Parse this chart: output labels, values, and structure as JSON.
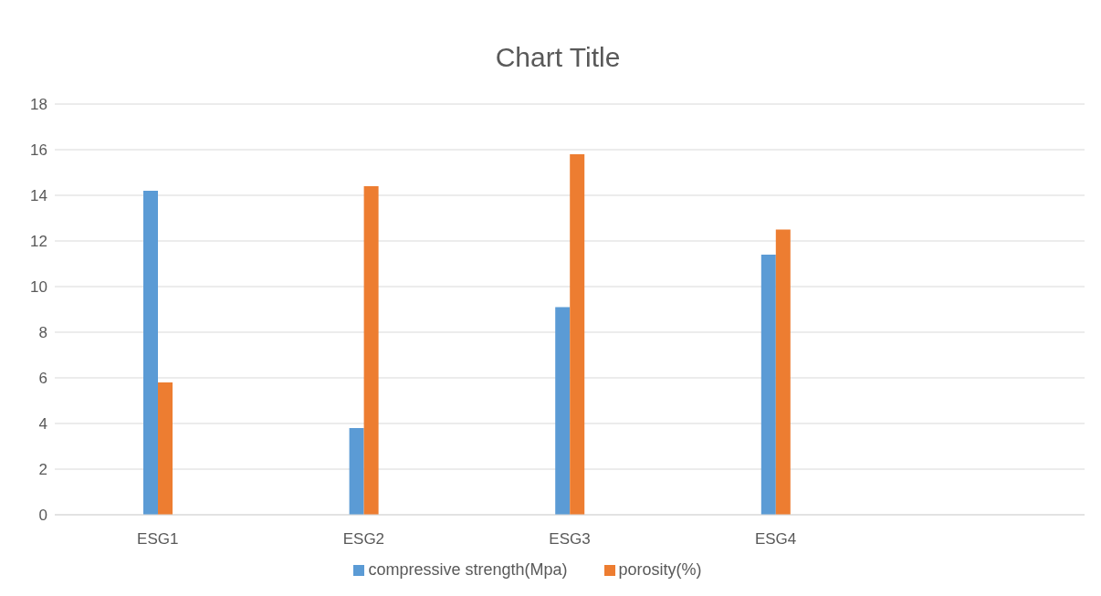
{
  "chart_data": {
    "type": "bar",
    "title": "Chart Title",
    "categories": [
      "ESG1",
      "ESG2",
      "ESG3",
      "ESG4",
      null
    ],
    "series": [
      {
        "name": "compressive strength(Mpa)",
        "color": "#5b9bd5",
        "values": [
          14.2,
          3.8,
          9.1,
          11.4,
          null
        ]
      },
      {
        "name": "porosity(%)",
        "color": "#ed7d31",
        "values": [
          5.8,
          14.4,
          15.8,
          12.5,
          null
        ]
      }
    ],
    "ylim": [
      0,
      18
    ],
    "yticks": [
      0,
      2,
      4,
      6,
      8,
      10,
      12,
      14,
      16,
      18
    ],
    "grid": "y",
    "legend": "bottom"
  }
}
